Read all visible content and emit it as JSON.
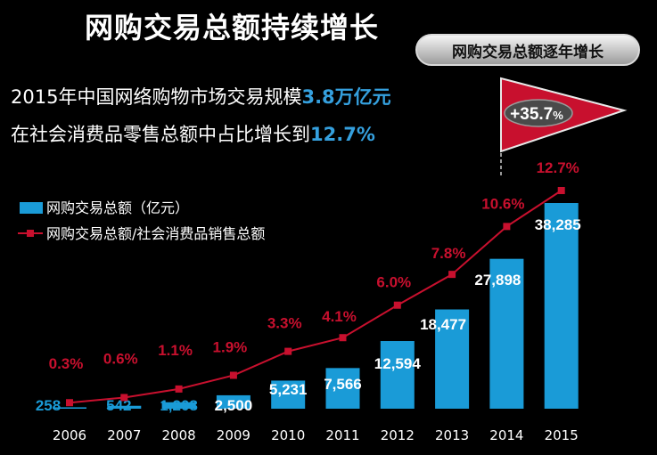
{
  "header": {
    "title": "网购交易总额持续增长",
    "badge": "网购交易总额逐年增长"
  },
  "summary": {
    "line1_prefix": "2015年中国网络购物市场交易规模",
    "line1_value": "3.8万亿元",
    "line2_prefix": "在社会消费品零售总额中占比增长到",
    "line2_value": "12.7%"
  },
  "growth_flag": {
    "value": "+35.7",
    "unit": "%"
  },
  "colors": {
    "background": "#000000",
    "bar": "#1a9bd7",
    "line": "#c8102e",
    "highlight": "#35a0de",
    "flag": "#c8102e"
  },
  "chart_data": {
    "type": "bar",
    "categories": [
      "2006",
      "2007",
      "2008",
      "2009",
      "2010",
      "2011",
      "2012",
      "2013",
      "2014",
      "2015"
    ],
    "series": [
      {
        "name": "网购交易总额（亿元）",
        "type": "bar",
        "values": [
          258,
          542,
          1208,
          2500,
          5231,
          7566,
          12594,
          18477,
          27898,
          38285
        ],
        "labels": [
          "258",
          "542",
          "1,208",
          "2,500",
          "5,231",
          "7,566",
          "12,594",
          "18,477",
          "27,898",
          "38,285"
        ]
      },
      {
        "name": "网购交易总额/社会消费品销售总额",
        "type": "line",
        "values": [
          0.3,
          0.6,
          1.1,
          1.9,
          3.3,
          4.1,
          6.0,
          7.8,
          10.6,
          12.7
        ],
        "labels": [
          "0.3%",
          "0.6%",
          "1.1%",
          "1.9%",
          "3.3%",
          "4.1%",
          "6.0%",
          "7.8%",
          "10.6%",
          "12.7%"
        ]
      }
    ],
    "legend": {
      "placement": "top-left",
      "entries": [
        "网购交易总额（亿元）",
        "网购交易总额/社会消费品销售总额"
      ]
    },
    "grid": false,
    "y_axis_visible": false
  }
}
